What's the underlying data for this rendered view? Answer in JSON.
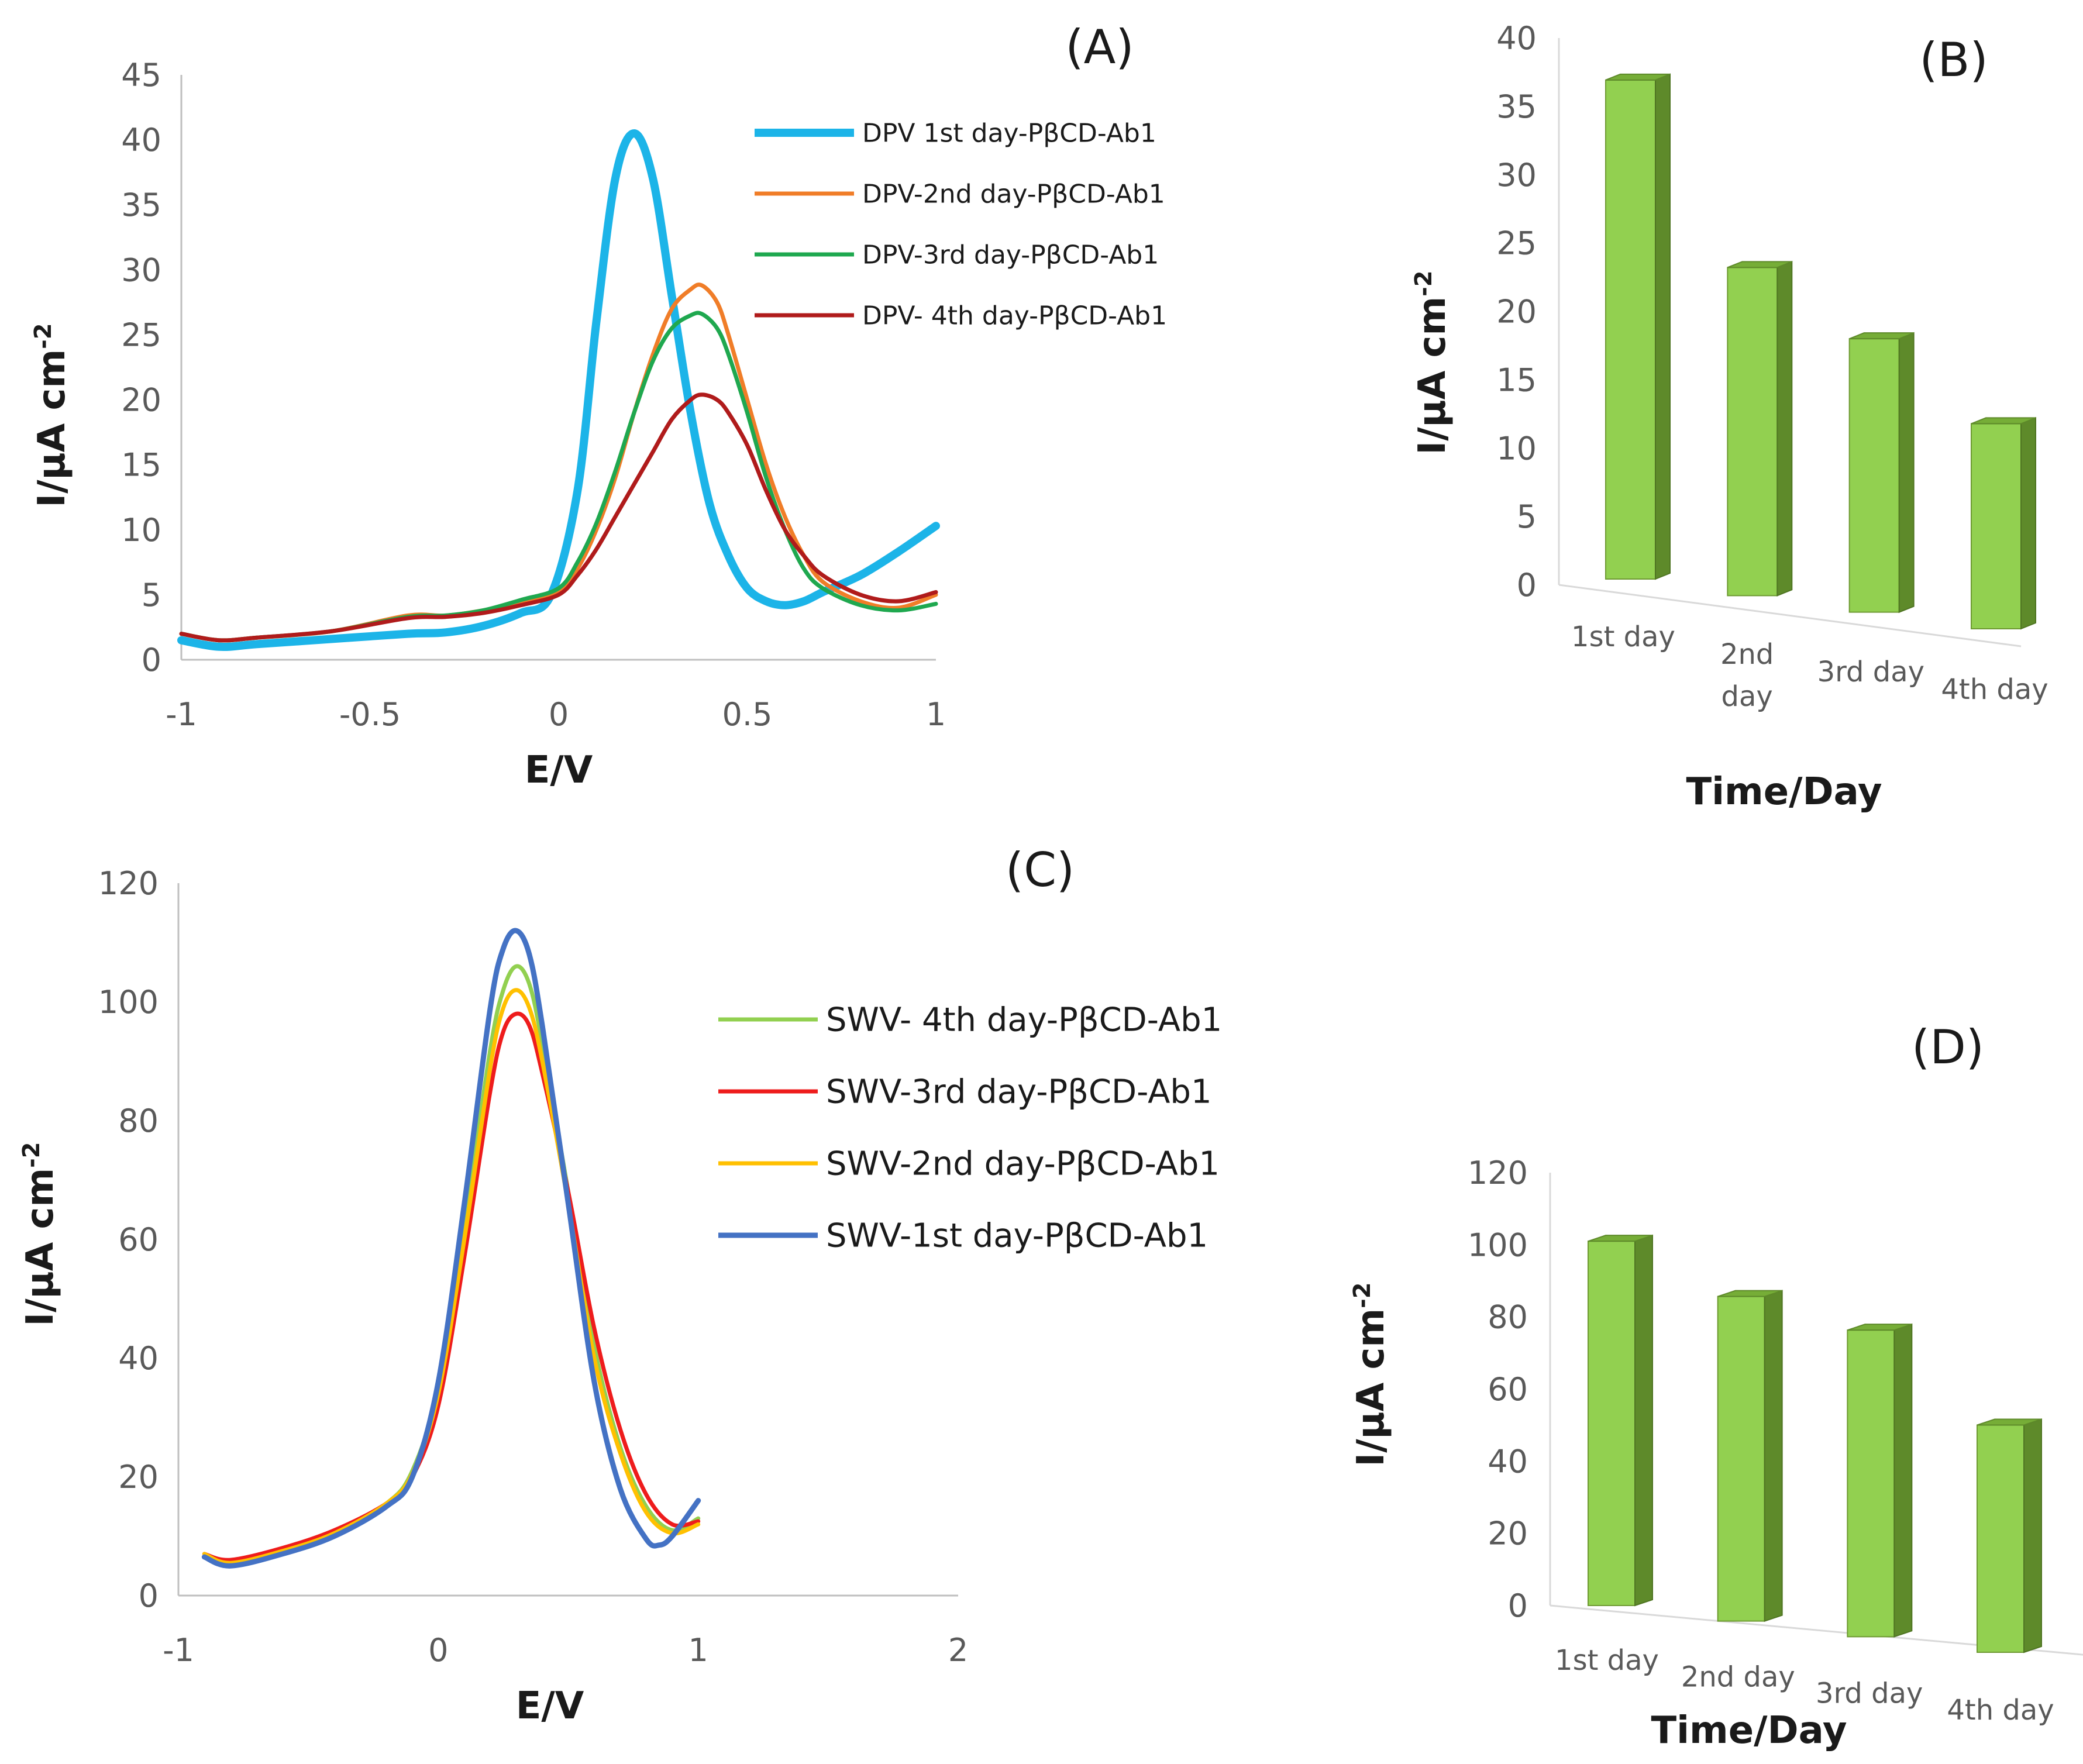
{
  "chart_data": [
    {
      "panel": "(A)",
      "type": "line",
      "xlabel": "E/V",
      "ylabel": "I/μA cm",
      "ylabel_sup": "-2",
      "xlim": [
        -1,
        1
      ],
      "ylim": [
        0,
        45
      ],
      "xticks": [
        -1,
        -0.5,
        0,
        0.5,
        1
      ],
      "yticks": [
        0,
        5,
        10,
        15,
        20,
        25,
        30,
        35,
        40,
        45
      ],
      "legend_position": "top-right",
      "series": [
        {
          "name": "DPV 1st day-PβCD-Ab1",
          "color": "#1CB4E8",
          "width": 14,
          "x": [
            -1,
            -0.9,
            -0.8,
            -0.6,
            -0.4,
            -0.3,
            -0.2,
            -0.1,
            -0.02,
            0.05,
            0.1,
            0.15,
            0.2,
            0.25,
            0.3,
            0.35,
            0.4,
            0.45,
            0.5,
            0.55,
            0.6,
            0.65,
            0.7,
            0.8,
            0.9,
            1.0
          ],
          "y": [
            1.5,
            1.0,
            1.2,
            1.6,
            2.0,
            2.1,
            2.6,
            3.6,
            5.0,
            13,
            26,
            37,
            40.5,
            37,
            28,
            19,
            12,
            8,
            5.5,
            4.5,
            4.2,
            4.5,
            5.2,
            6.5,
            8.3,
            10.3
          ]
        },
        {
          "name": "DPV-2nd day-PβCD-Ab1",
          "color": "#F07D28",
          "width": 7,
          "x": [
            -1,
            -0.9,
            -0.8,
            -0.6,
            -0.4,
            -0.3,
            -0.2,
            -0.1,
            0,
            0.05,
            0.1,
            0.15,
            0.2,
            0.25,
            0.3,
            0.35,
            0.38,
            0.42,
            0.45,
            0.5,
            0.55,
            0.6,
            0.65,
            0.7,
            0.8,
            0.9,
            1.0
          ],
          "y": [
            2.0,
            1.5,
            1.7,
            2.2,
            3.4,
            3.4,
            3.8,
            4.4,
            5.2,
            7,
            10,
            14,
            19,
            23.5,
            27,
            28.5,
            28.8,
            27.5,
            25,
            20,
            15,
            11,
            8,
            6,
            4.5,
            4.0,
            5.0
          ]
        },
        {
          "name": "DPV-3rd day-PβCD-Ab1",
          "color": "#1FA84F",
          "width": 7,
          "x": [
            -1,
            -0.9,
            -0.8,
            -0.6,
            -0.4,
            -0.3,
            -0.2,
            -0.1,
            0,
            0.05,
            0.1,
            0.15,
            0.2,
            0.25,
            0.3,
            0.35,
            0.38,
            0.42,
            0.45,
            0.5,
            0.55,
            0.6,
            0.65,
            0.7,
            0.8,
            0.9,
            1.0
          ],
          "y": [
            2.0,
            1.5,
            1.7,
            2.2,
            3.3,
            3.4,
            3.8,
            4.6,
            5.5,
            7.5,
            10.5,
            14.5,
            19,
            23,
            25.5,
            26.5,
            26.6,
            25.5,
            23.5,
            19,
            14,
            10,
            7,
            5.5,
            4.2,
            3.8,
            4.3
          ]
        },
        {
          "name": "DPV- 4th day-PβCD-Ab1",
          "color": "#B01B1B",
          "width": 7,
          "x": [
            -1,
            -0.9,
            -0.8,
            -0.6,
            -0.4,
            -0.3,
            -0.2,
            -0.1,
            0,
            0.05,
            0.1,
            0.15,
            0.2,
            0.25,
            0.3,
            0.35,
            0.38,
            0.42,
            0.45,
            0.5,
            0.55,
            0.6,
            0.65,
            0.7,
            0.8,
            0.9,
            1.0
          ],
          "y": [
            2.0,
            1.5,
            1.7,
            2.2,
            3.2,
            3.3,
            3.6,
            4.2,
            5.0,
            6.5,
            8.5,
            11,
            13.5,
            16,
            18.5,
            20,
            20.4,
            20,
            19,
            16.5,
            13,
            10,
            8,
            6.5,
            5,
            4.5,
            5.2
          ]
        }
      ]
    },
    {
      "panel": "(B)",
      "type": "bar",
      "xlabel": "Time/Day",
      "ylabel": "I/μA cm",
      "ylabel_sup": "-2",
      "ylim": [
        0,
        40
      ],
      "yticks": [
        0,
        5,
        10,
        15,
        20,
        25,
        30,
        35,
        40
      ],
      "categories": [
        "1st day",
        "2nd\nday",
        "3rd day",
        "4th day"
      ],
      "values": [
        36.5,
        24,
        20,
        15
      ],
      "bar_color": "#92D050"
    },
    {
      "panel": "(C)",
      "type": "line",
      "xlabel": "E/V",
      "ylabel": "I/μA cm",
      "ylabel_sup": "-2",
      "xlim": [
        -1,
        2
      ],
      "ylim": [
        0,
        120
      ],
      "xticks": [
        -1,
        0,
        1,
        2
      ],
      "yticks": [
        0,
        20,
        40,
        60,
        80,
        100,
        120
      ],
      "legend_position": "right",
      "series": [
        {
          "name": "SWV- 4th day-PβCD-Ab1",
          "color": "#92D050",
          "width": 7,
          "x": [
            -0.9,
            -0.8,
            -0.6,
            -0.4,
            -0.2,
            -0.1,
            0,
            0.1,
            0.2,
            0.25,
            0.3,
            0.35,
            0.4,
            0.5,
            0.6,
            0.7,
            0.8,
            0.9,
            1.0
          ],
          "y": [
            7,
            5.5,
            7.5,
            10.5,
            15.5,
            21,
            35,
            62,
            92,
            102,
            106,
            103,
            93,
            68,
            42,
            25,
            15,
            11,
            13
          ]
        },
        {
          "name": "SWV-3rd day-PβCD-Ab1",
          "color": "#EE1C1C",
          "width": 7,
          "x": [
            -0.9,
            -0.8,
            -0.6,
            -0.4,
            -0.2,
            -0.1,
            0,
            0.1,
            0.2,
            0.25,
            0.3,
            0.35,
            0.4,
            0.5,
            0.6,
            0.7,
            0.8,
            0.9,
            1.0
          ],
          "y": [
            7,
            6,
            8,
            11,
            15.5,
            20,
            32,
            57,
            85,
            95,
            98,
            96,
            88,
            68,
            45,
            28,
            17,
            12,
            12.5
          ]
        },
        {
          "name": "SWV-2nd day-PβCD-Ab1",
          "color": "#FFC000",
          "width": 7,
          "x": [
            -0.9,
            -0.8,
            -0.6,
            -0.4,
            -0.2,
            -0.1,
            0,
            0.1,
            0.2,
            0.25,
            0.3,
            0.35,
            0.4,
            0.5,
            0.6,
            0.7,
            0.8,
            0.9,
            1.0
          ],
          "y": [
            7,
            5.5,
            7.5,
            10.5,
            15.5,
            20.5,
            34,
            60,
            89,
            99,
            102,
            99,
            90,
            66,
            40,
            24,
            14,
            10.5,
            12
          ]
        },
        {
          "name": "SWV-1st day-PβCD-Ab1",
          "color": "#4472C4",
          "width": 9,
          "x": [
            -0.9,
            -0.8,
            -0.6,
            -0.4,
            -0.2,
            -0.1,
            0,
            0.1,
            0.2,
            0.25,
            0.3,
            0.35,
            0.4,
            0.5,
            0.6,
            0.7,
            0.8,
            0.85,
            0.9,
            1.0
          ],
          "y": [
            6.5,
            5,
            7,
            10,
            15,
            20,
            36,
            66,
            99,
            109,
            112,
            108,
            96,
            66,
            36,
            18,
            9.5,
            8.5,
            10,
            16
          ]
        }
      ]
    },
    {
      "panel": "(D)",
      "type": "bar",
      "xlabel": "Time/Day",
      "ylabel": "I/μA cm",
      "ylabel_sup": "-2",
      "ylim": [
        0,
        120
      ],
      "yticks": [
        0,
        20,
        40,
        60,
        80,
        100,
        120
      ],
      "categories": [
        "1st day",
        "2nd day",
        "3rd day",
        "4th day"
      ],
      "values": [
        101,
        90,
        85,
        63
      ],
      "bar_color": "#92D050"
    }
  ]
}
